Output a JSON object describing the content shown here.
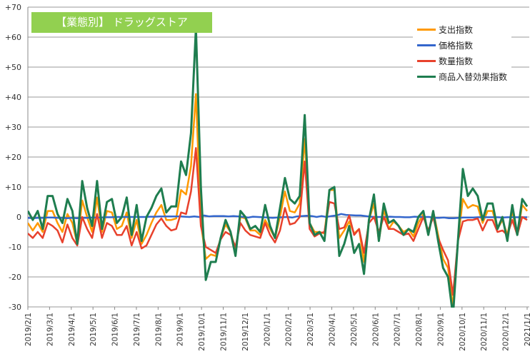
{
  "chart_data": {
    "type": "line",
    "title": "【業態別】 ドラッグストア",
    "xlabel": "",
    "ylabel": "",
    "ylim": [
      -30,
      70
    ],
    "yticks": [
      "+70",
      "+60",
      "+50",
      "+40",
      "+30",
      "+20",
      "+10",
      "0",
      "-10",
      "-20",
      "-30"
    ],
    "ytick_values": [
      70,
      60,
      50,
      40,
      30,
      20,
      10,
      0,
      -10,
      -20,
      -30
    ],
    "xticks": [
      "2019/2/1",
      "2019/3/1",
      "2019/4/1",
      "2019/5/1",
      "2019/6/1",
      "2019/7/1",
      "2019/8/1",
      "2019/9/1",
      "2019/10/1",
      "2019/11/1",
      "2019/12/1",
      "2020/1/1",
      "2020/2/1",
      "2020/3/1",
      "2020/4/1",
      "2020/5/1",
      "2020/6/1",
      "2020/7/1",
      "2020/8/1",
      "2020/9/1",
      "2020/10/1",
      "2020/11/1",
      "2020/12/1",
      "2021/1/1"
    ],
    "grid": true,
    "legend": "top-right",
    "series": [
      {
        "name": "支出指数",
        "color": "#ff9900",
        "values": [
          -2,
          -4.5,
          -2,
          -5,
          2,
          2,
          -2,
          -5,
          1,
          -2,
          -9,
          5.5,
          0,
          -5,
          6.5,
          -5,
          2,
          1.5,
          -4,
          -3,
          1.5,
          -7,
          -1,
          -9,
          -6,
          -2,
          1.5,
          4,
          -1,
          -1,
          -0.5,
          9,
          7.5,
          17,
          41,
          -2,
          -14,
          -12.5,
          -13,
          -7,
          -2.5,
          -5,
          -11,
          0,
          -0.5,
          -4.5,
          -4.5,
          -6,
          -1,
          -4,
          -7,
          0,
          8.5,
          2,
          1.5,
          4.5,
          26,
          -2,
          -5,
          -5,
          -5.5,
          9,
          9,
          -7,
          -4.5,
          -1.5,
          -5.5,
          -4,
          -15,
          -1,
          4.5,
          -8,
          2.5,
          -4,
          -1.5,
          -3,
          -5,
          -4,
          -6.5,
          -2,
          1,
          -6,
          2,
          -6,
          -14,
          -17,
          -30,
          -8,
          6,
          3,
          4,
          3.5,
          -2,
          2,
          2,
          -4,
          -1,
          -6,
          2,
          -6,
          4,
          2
        ]
      },
      {
        "name": "価格指数",
        "color": "#3366cc",
        "values": [
          -0.3,
          -0.4,
          -0.3,
          -0.3,
          -0.2,
          -0.2,
          -0.3,
          -0.3,
          -0.4,
          -0.3,
          -0.4,
          -0.3,
          -0.3,
          -0.2,
          -0.2,
          -0.2,
          -0.1,
          -0.1,
          0,
          0,
          0,
          0,
          0,
          0,
          0,
          0.1,
          0.1,
          0.2,
          0.2,
          0.2,
          0.2,
          0.2,
          0.1,
          0,
          0.2,
          0,
          0.5,
          0.2,
          0.3,
          0.3,
          0.3,
          0.2,
          0.3,
          0.2,
          0,
          -0.2,
          0.1,
          0,
          -0.1,
          -0.2,
          -0.3,
          -0.2,
          -0.1,
          0,
          -0.2,
          0.2,
          0.3,
          0.4,
          0.3,
          0,
          0.3,
          0,
          0.3,
          0.5,
          1,
          0.7,
          0.6,
          0.5,
          0.5,
          0.3,
          0.1,
          0,
          0,
          0,
          0.1,
          0,
          0,
          -0.1,
          -0.1,
          0.1,
          0,
          0,
          0,
          -0.3,
          -0.3,
          -0.2,
          -0.4,
          -0.4,
          -0.3,
          -0.2,
          -0.2,
          -0.2,
          -0.1,
          -0.1,
          -0.1,
          -0.1,
          -0.1,
          -0.2,
          -0.1,
          -0.1,
          -0.1,
          -0.1,
          -0.1
        ]
      },
      {
        "name": "数量指数",
        "color": "#e8412c",
        "values": [
          -5.5,
          -7,
          -5,
          -7,
          -2,
          -3,
          -4.5,
          -8.5,
          -2.5,
          -7,
          -9.5,
          0,
          -4,
          -7,
          1,
          -7,
          -2,
          -3,
          -6,
          -6,
          -3,
          -9.5,
          -5,
          -10.5,
          -9.5,
          -6,
          -2.5,
          -0.5,
          -3,
          -4.5,
          -4,
          1.5,
          1,
          8.5,
          23,
          -3,
          -10,
          -11,
          -12,
          -7.5,
          -5,
          -6,
          -10,
          -2,
          -4.5,
          -6,
          -6.5,
          -7,
          -2,
          -6,
          -8.5,
          -4.5,
          3,
          -2.5,
          -2,
          0,
          18.5,
          -4,
          -6.5,
          -5.5,
          -5,
          5,
          4.5,
          -4,
          -3.5,
          0.5,
          -6,
          -4,
          -12,
          -2,
          0,
          -5,
          0,
          -4,
          -4,
          -5,
          -6,
          -5.5,
          -8,
          -4,
          0,
          -4.5,
          0,
          -7,
          -11,
          -14.5,
          -26,
          -8,
          -1.5,
          -1,
          -1,
          -0.5,
          -4.5,
          -1,
          -1,
          -5,
          -4.5,
          -6,
          -1,
          -6,
          0,
          -1
        ]
      },
      {
        "name": "商品入替効果指数",
        "color": "#1e7d4f",
        "values": [
          2,
          -1,
          2,
          -4,
          7,
          7,
          1,
          -2,
          6,
          2,
          -9,
          12,
          3,
          -3,
          12,
          -4,
          5,
          6,
          -2,
          0,
          6.5,
          -6,
          4,
          -8,
          0,
          3,
          7,
          9.5,
          1.5,
          3.5,
          3.5,
          18.5,
          14,
          28,
          63,
          10,
          -21,
          -15,
          -15,
          -7,
          -1,
          -5,
          -13,
          2,
          0,
          -4,
          -3,
          -5,
          4,
          -3,
          -7,
          3,
          13,
          6,
          4.5,
          7,
          34,
          -2,
          -6,
          -5,
          -8,
          9,
          10,
          -13,
          -9,
          -3,
          -12,
          -9,
          -19,
          -1,
          7.5,
          -8,
          4.5,
          -2,
          -1,
          -3,
          -6,
          -4,
          -5,
          0,
          2,
          -6,
          2,
          -8,
          -17,
          -20,
          -33,
          -8,
          16,
          7,
          9.5,
          7,
          -1,
          4.5,
          4.5,
          -4,
          0,
          -8,
          4,
          -6,
          6,
          3.5
        ]
      }
    ]
  }
}
